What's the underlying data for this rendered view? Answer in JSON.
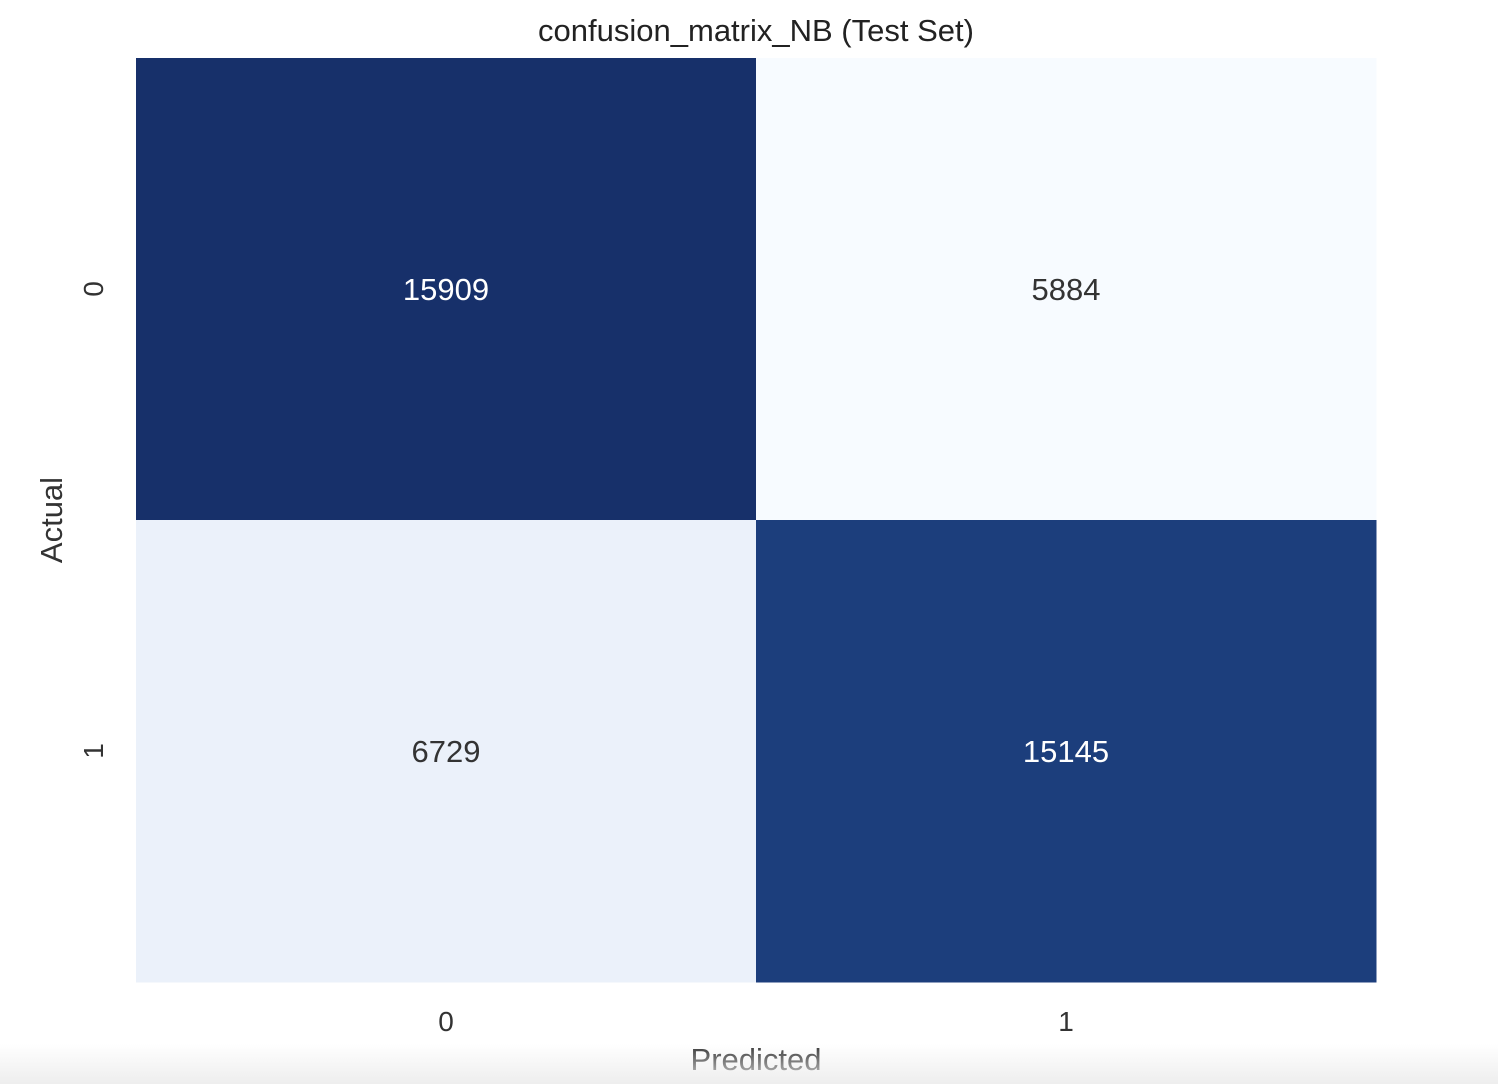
{
  "chart_data": {
    "type": "heatmap",
    "title": "confusion_matrix_NB (Test Set)",
    "xlabel": "Predicted",
    "ylabel": "Actual",
    "x_categories": [
      "0",
      "1"
    ],
    "y_categories": [
      "0",
      "1"
    ],
    "values": [
      [
        15909,
        5884
      ],
      [
        6729,
        15145
      ]
    ],
    "colormap": "Blues",
    "colorbar": false,
    "colors": {
      "dark": "#17306a",
      "mid_dark": "#1e4483",
      "light": "#f6fafe",
      "lighter": "#e8eff9",
      "text_on_dark": "#ffffff",
      "text_on_light": "#333333"
    },
    "range": [
      5884,
      15909
    ]
  }
}
